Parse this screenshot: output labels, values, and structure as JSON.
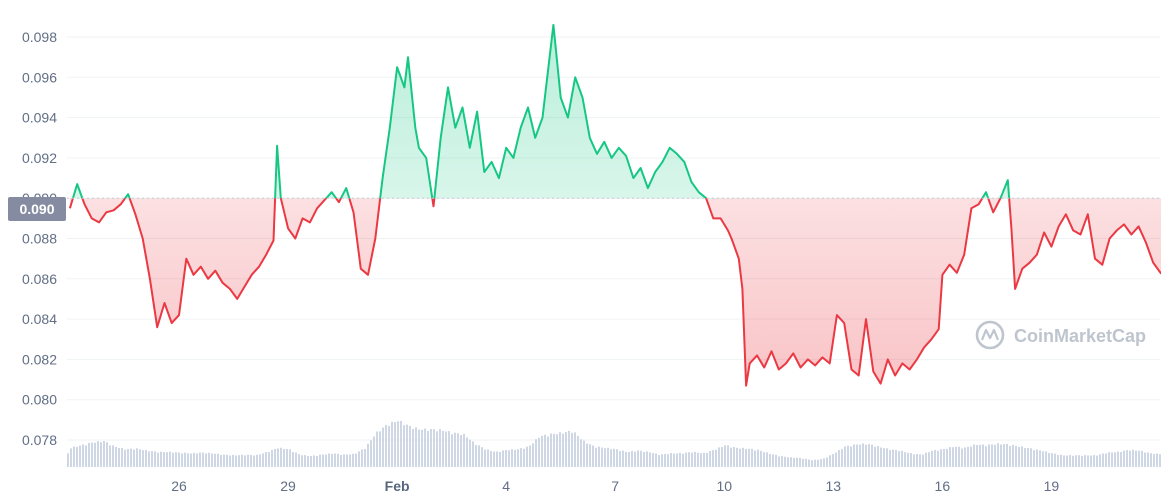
{
  "chart_data": {
    "type": "area",
    "xlabel": "",
    "ylabel": "",
    "ylim": [
      0.0765,
      0.099
    ],
    "y_ticks": [
      "0.078",
      "0.080",
      "0.082",
      "0.084",
      "0.086",
      "0.088",
      "0.090",
      "0.092",
      "0.094",
      "0.096",
      "0.098"
    ],
    "x_ticks": [
      {
        "label": "26",
        "t": 2.0,
        "bold": false
      },
      {
        "label": "29",
        "t": 5.0,
        "bold": false
      },
      {
        "label": "Feb",
        "t": 8.0,
        "bold": true
      },
      {
        "label": "4",
        "t": 11.0,
        "bold": false
      },
      {
        "label": "7",
        "t": 14.0,
        "bold": false
      },
      {
        "label": "10",
        "t": 17.0,
        "bold": false
      },
      {
        "label": "13",
        "t": 20.0,
        "bold": false
      },
      {
        "label": "16",
        "t": 23.0,
        "bold": false
      },
      {
        "label": "19",
        "t": 26.0,
        "bold": false
      }
    ],
    "baseline": 0.09,
    "baseline_label": "0.090",
    "up_color": "#16c784",
    "down_color": "#ea3943",
    "volume_color": "#cfd6e4",
    "series": [
      {
        "values": [
          [
            -1.0,
            0.0895
          ],
          [
            -0.8,
            0.0907
          ],
          [
            -0.6,
            0.0897
          ],
          [
            -0.4,
            0.089
          ],
          [
            -0.2,
            0.0888
          ],
          [
            0.0,
            0.0893
          ],
          [
            0.2,
            0.0894
          ],
          [
            0.4,
            0.0897
          ],
          [
            0.6,
            0.0902
          ],
          [
            0.8,
            0.0892
          ],
          [
            1.0,
            0.088
          ],
          [
            1.2,
            0.086
          ],
          [
            1.4,
            0.0836
          ],
          [
            1.6,
            0.0848
          ],
          [
            1.8,
            0.0838
          ],
          [
            2.0,
            0.0842
          ],
          [
            2.2,
            0.087
          ],
          [
            2.4,
            0.0862
          ],
          [
            2.6,
            0.0866
          ],
          [
            2.8,
            0.086
          ],
          [
            3.0,
            0.0864
          ],
          [
            3.2,
            0.0858
          ],
          [
            3.4,
            0.0855
          ],
          [
            3.6,
            0.085
          ],
          [
            3.8,
            0.0856
          ],
          [
            4.0,
            0.0862
          ],
          [
            4.2,
            0.0866
          ],
          [
            4.4,
            0.0872
          ],
          [
            4.6,
            0.0879
          ],
          [
            4.7,
            0.0926
          ],
          [
            4.8,
            0.09
          ],
          [
            5.0,
            0.0885
          ],
          [
            5.2,
            0.088
          ],
          [
            5.4,
            0.089
          ],
          [
            5.6,
            0.0888
          ],
          [
            5.8,
            0.0895
          ],
          [
            6.0,
            0.0899
          ],
          [
            6.2,
            0.0903
          ],
          [
            6.4,
            0.0898
          ],
          [
            6.6,
            0.0905
          ],
          [
            6.8,
            0.0893
          ],
          [
            7.0,
            0.0865
          ],
          [
            7.2,
            0.0862
          ],
          [
            7.4,
            0.088
          ],
          [
            7.6,
            0.091
          ],
          [
            7.8,
            0.0935
          ],
          [
            8.0,
            0.0965
          ],
          [
            8.2,
            0.0955
          ],
          [
            8.3,
            0.097
          ],
          [
            8.5,
            0.0935
          ],
          [
            8.6,
            0.0925
          ],
          [
            8.8,
            0.092
          ],
          [
            9.0,
            0.0896
          ],
          [
            9.2,
            0.093
          ],
          [
            9.4,
            0.0955
          ],
          [
            9.6,
            0.0935
          ],
          [
            9.8,
            0.0945
          ],
          [
            10.0,
            0.0925
          ],
          [
            10.2,
            0.0943
          ],
          [
            10.4,
            0.0913
          ],
          [
            10.6,
            0.0918
          ],
          [
            10.8,
            0.091
          ],
          [
            11.0,
            0.0925
          ],
          [
            11.2,
            0.092
          ],
          [
            11.4,
            0.0935
          ],
          [
            11.6,
            0.0945
          ],
          [
            11.8,
            0.093
          ],
          [
            12.0,
            0.094
          ],
          [
            12.3,
            0.0986
          ],
          [
            12.5,
            0.095
          ],
          [
            12.7,
            0.094
          ],
          [
            12.9,
            0.096
          ],
          [
            13.1,
            0.095
          ],
          [
            13.3,
            0.093
          ],
          [
            13.5,
            0.0922
          ],
          [
            13.7,
            0.0928
          ],
          [
            13.9,
            0.092
          ],
          [
            14.1,
            0.0925
          ],
          [
            14.3,
            0.0921
          ],
          [
            14.5,
            0.091
          ],
          [
            14.7,
            0.0915
          ],
          [
            14.9,
            0.0905
          ],
          [
            15.1,
            0.0913
          ],
          [
            15.3,
            0.0918
          ],
          [
            15.5,
            0.0925
          ],
          [
            15.7,
            0.0922
          ],
          [
            15.9,
            0.0918
          ],
          [
            16.1,
            0.0908
          ],
          [
            16.3,
            0.0903
          ],
          [
            16.5,
            0.09
          ],
          [
            16.7,
            0.089
          ],
          [
            16.9,
            0.089
          ],
          [
            17.1,
            0.0884
          ],
          [
            17.2,
            0.088
          ],
          [
            17.4,
            0.087
          ],
          [
            17.5,
            0.0855
          ],
          [
            17.6,
            0.0807
          ],
          [
            17.7,
            0.0818
          ],
          [
            17.9,
            0.0822
          ],
          [
            18.1,
            0.0816
          ],
          [
            18.3,
            0.0824
          ],
          [
            18.5,
            0.0815
          ],
          [
            18.7,
            0.0818
          ],
          [
            18.9,
            0.0823
          ],
          [
            19.1,
            0.0816
          ],
          [
            19.3,
            0.082
          ],
          [
            19.5,
            0.0817
          ],
          [
            19.7,
            0.0821
          ],
          [
            19.9,
            0.0818
          ],
          [
            20.1,
            0.0842
          ],
          [
            20.3,
            0.0838
          ],
          [
            20.5,
            0.0815
          ],
          [
            20.7,
            0.0812
          ],
          [
            20.9,
            0.084
          ],
          [
            21.1,
            0.0814
          ],
          [
            21.3,
            0.0808
          ],
          [
            21.5,
            0.082
          ],
          [
            21.7,
            0.0812
          ],
          [
            21.9,
            0.0818
          ],
          [
            22.1,
            0.0815
          ],
          [
            22.3,
            0.082
          ],
          [
            22.5,
            0.0826
          ],
          [
            22.7,
            0.083
          ],
          [
            22.9,
            0.0835
          ],
          [
            23.0,
            0.0862
          ],
          [
            23.2,
            0.0867
          ],
          [
            23.4,
            0.0863
          ],
          [
            23.6,
            0.0872
          ],
          [
            23.8,
            0.0895
          ],
          [
            24.0,
            0.0897
          ],
          [
            24.2,
            0.0903
          ],
          [
            24.4,
            0.0893
          ],
          [
            24.6,
            0.09
          ],
          [
            24.8,
            0.0909
          ],
          [
            24.9,
            0.0885
          ],
          [
            25.0,
            0.0855
          ],
          [
            25.2,
            0.0865
          ],
          [
            25.4,
            0.0868
          ],
          [
            25.6,
            0.0872
          ],
          [
            25.8,
            0.0883
          ],
          [
            26.0,
            0.0876
          ],
          [
            26.2,
            0.0886
          ],
          [
            26.4,
            0.0892
          ],
          [
            26.6,
            0.0884
          ],
          [
            26.8,
            0.0882
          ],
          [
            27.0,
            0.0892
          ],
          [
            27.2,
            0.087
          ],
          [
            27.4,
            0.0867
          ],
          [
            27.6,
            0.088
          ],
          [
            27.8,
            0.0884
          ],
          [
            28.0,
            0.0887
          ],
          [
            28.2,
            0.0882
          ],
          [
            28.4,
            0.0886
          ],
          [
            28.6,
            0.0878
          ],
          [
            28.8,
            0.0868
          ],
          [
            29.0,
            0.0863
          ],
          [
            29.2,
            0.086
          ],
          [
            29.3,
            0.0864
          ]
        ]
      }
    ],
    "volume": [
      [
        -1.0,
        0.28
      ],
      [
        -0.7,
        0.32
      ],
      [
        -0.4,
        0.36
      ],
      [
        -0.1,
        0.38
      ],
      [
        0.2,
        0.3
      ],
      [
        0.5,
        0.26
      ],
      [
        0.8,
        0.27
      ],
      [
        1.1,
        0.24
      ],
      [
        1.4,
        0.22
      ],
      [
        1.7,
        0.22
      ],
      [
        2.0,
        0.21
      ],
      [
        2.3,
        0.2
      ],
      [
        2.6,
        0.21
      ],
      [
        2.9,
        0.2
      ],
      [
        3.2,
        0.18
      ],
      [
        3.5,
        0.17
      ],
      [
        3.8,
        0.18
      ],
      [
        4.1,
        0.17
      ],
      [
        4.4,
        0.22
      ],
      [
        4.7,
        0.28
      ],
      [
        5.0,
        0.26
      ],
      [
        5.3,
        0.18
      ],
      [
        5.6,
        0.16
      ],
      [
        5.9,
        0.18
      ],
      [
        6.2,
        0.2
      ],
      [
        6.5,
        0.18
      ],
      [
        6.8,
        0.19
      ],
      [
        7.1,
        0.28
      ],
      [
        7.4,
        0.5
      ],
      [
        7.7,
        0.62
      ],
      [
        8.0,
        0.68
      ],
      [
        8.3,
        0.6
      ],
      [
        8.6,
        0.55
      ],
      [
        8.9,
        0.55
      ],
      [
        9.2,
        0.54
      ],
      [
        9.5,
        0.5
      ],
      [
        9.8,
        0.48
      ],
      [
        10.1,
        0.35
      ],
      [
        10.4,
        0.26
      ],
      [
        10.7,
        0.22
      ],
      [
        11.0,
        0.25
      ],
      [
        11.3,
        0.26
      ],
      [
        11.6,
        0.3
      ],
      [
        11.9,
        0.45
      ],
      [
        12.2,
        0.48
      ],
      [
        12.5,
        0.5
      ],
      [
        12.8,
        0.53
      ],
      [
        13.1,
        0.38
      ],
      [
        13.4,
        0.3
      ],
      [
        13.7,
        0.28
      ],
      [
        14.0,
        0.26
      ],
      [
        14.3,
        0.22
      ],
      [
        14.6,
        0.24
      ],
      [
        14.9,
        0.22
      ],
      [
        15.2,
        0.18
      ],
      [
        15.5,
        0.2
      ],
      [
        15.8,
        0.2
      ],
      [
        16.1,
        0.22
      ],
      [
        16.4,
        0.2
      ],
      [
        16.7,
        0.25
      ],
      [
        17.0,
        0.32
      ],
      [
        17.3,
        0.28
      ],
      [
        17.6,
        0.27
      ],
      [
        17.9,
        0.25
      ],
      [
        18.2,
        0.2
      ],
      [
        18.5,
        0.16
      ],
      [
        18.8,
        0.14
      ],
      [
        19.1,
        0.13
      ],
      [
        19.4,
        0.1
      ],
      [
        19.7,
        0.12
      ],
      [
        20.0,
        0.2
      ],
      [
        20.3,
        0.3
      ],
      [
        20.6,
        0.33
      ],
      [
        20.9,
        0.34
      ],
      [
        21.2,
        0.3
      ],
      [
        21.5,
        0.26
      ],
      [
        21.8,
        0.24
      ],
      [
        22.1,
        0.2
      ],
      [
        22.4,
        0.18
      ],
      [
        22.7,
        0.24
      ],
      [
        23.0,
        0.26
      ],
      [
        23.3,
        0.3
      ],
      [
        23.6,
        0.28
      ],
      [
        23.9,
        0.33
      ],
      [
        24.2,
        0.32
      ],
      [
        24.5,
        0.34
      ],
      [
        24.8,
        0.33
      ],
      [
        25.1,
        0.3
      ],
      [
        25.4,
        0.27
      ],
      [
        25.7,
        0.24
      ],
      [
        26.0,
        0.2
      ],
      [
        26.3,
        0.17
      ],
      [
        26.6,
        0.17
      ],
      [
        26.9,
        0.17
      ],
      [
        27.2,
        0.17
      ],
      [
        27.5,
        0.21
      ],
      [
        27.8,
        0.22
      ],
      [
        28.1,
        0.25
      ],
      [
        28.4,
        0.24
      ],
      [
        28.7,
        0.2
      ],
      [
        29.0,
        0.19
      ],
      [
        29.3,
        0.2
      ]
    ],
    "x_range": [
      -1.0,
      29.3
    ]
  },
  "watermark": {
    "text": "CoinMarketCap",
    "icon": "coinmarketcap-logo-icon"
  }
}
